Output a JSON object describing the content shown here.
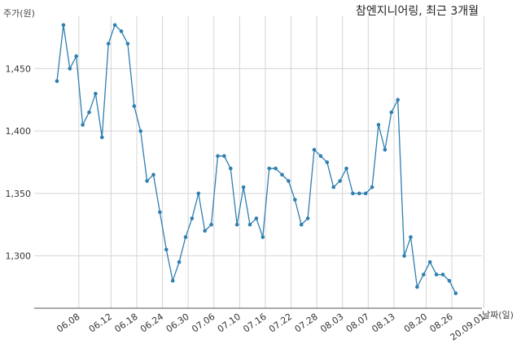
{
  "chart_data": {
    "type": "line",
    "title": "참엔지니어링, 최근 3개월",
    "ylabel": "주가(원)",
    "xlabel": "날짜(일)",
    "ylim": [
      1258,
      1492
    ],
    "y_ticks": [
      1300,
      1350,
      1400,
      1450
    ],
    "y_tick_labels": [
      "1,300",
      "1,350",
      "1,400",
      "1,450"
    ],
    "x_tick_labels": [
      "06.08",
      "06.12",
      "06.18",
      "06.24",
      "06.30",
      "07.06",
      "07.10",
      "07.16",
      "07.22",
      "07.28",
      "08.03",
      "08.07",
      "08.13",
      "08.20",
      "08.26",
      "20.09.01"
    ],
    "x_tick_indices": [
      3.4,
      8.4,
      12.4,
      16.4,
      20.4,
      24.4,
      28.4,
      32.4,
      36.4,
      40.4,
      44.4,
      48.4,
      52.4,
      57.4,
      61.4,
      66.4
    ],
    "grid": true,
    "line_color": "#2f7fb0",
    "values": [
      1440,
      1485,
      1450,
      1460,
      1405,
      1415,
      1430,
      1395,
      1470,
      1485,
      1480,
      1470,
      1420,
      1400,
      1360,
      1365,
      1335,
      1305,
      1280,
      1295,
      1315,
      1330,
      1350,
      1320,
      1325,
      1380,
      1380,
      1370,
      1325,
      1355,
      1325,
      1330,
      1315,
      1370,
      1370,
      1365,
      1360,
      1345,
      1325,
      1330,
      1385,
      1380,
      1375,
      1355,
      1360,
      1370,
      1350,
      1350,
      1350,
      1355,
      1405,
      1385,
      1415,
      1425,
      1300,
      1315,
      1275,
      1285,
      1295,
      1285,
      1285,
      1280,
      1270
    ]
  }
}
